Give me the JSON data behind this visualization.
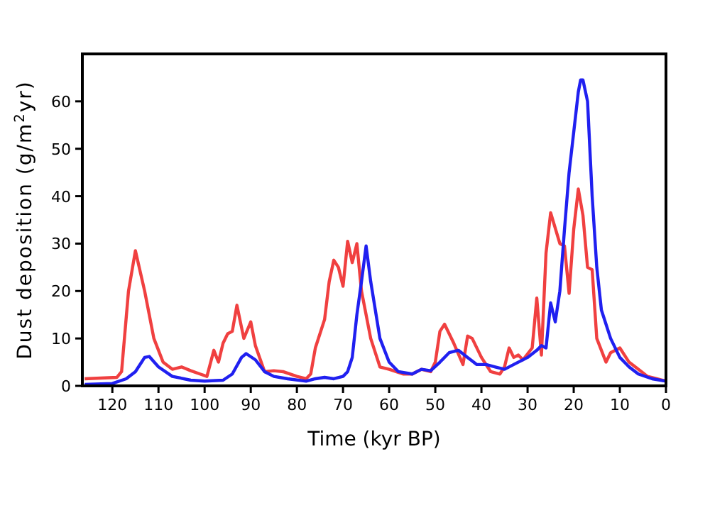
{
  "chart_data": {
    "type": "line",
    "xlabel": "Time (kyr BP)",
    "ylabel": "Dust deposition (g/m$^{2}$yr)",
    "xlim": [
      126.5,
      0
    ],
    "ylim": [
      0,
      70
    ],
    "xticks": [
      120,
      110,
      100,
      90,
      80,
      70,
      60,
      50,
      40,
      30,
      20,
      10,
      0
    ],
    "yticks": [
      0,
      10,
      20,
      30,
      40,
      50,
      60
    ],
    "grid": false,
    "line_style": "solid",
    "marker": "none",
    "series": [
      {
        "color": "#f04040",
        "x": [
          126,
          119,
          118,
          116.5,
          115,
          113,
          111,
          109,
          107,
          105,
          103,
          101,
          99.5,
          98,
          97,
          96,
          95,
          94,
          93,
          91.5,
          90,
          89,
          87,
          85,
          83,
          80,
          78,
          77,
          76,
          74,
          73,
          72,
          71,
          70,
          69,
          68,
          67,
          66,
          64,
          62,
          60,
          57,
          55,
          53,
          51,
          50,
          49,
          48,
          46,
          44,
          43,
          42,
          40,
          38,
          36,
          35,
          34,
          33,
          32,
          31,
          29,
          28,
          27,
          26,
          25,
          23,
          22,
          21,
          20,
          19,
          18,
          17,
          16,
          15,
          13,
          12,
          10,
          8,
          6,
          4,
          2,
          0
        ],
        "values": [
          1.5,
          1.8,
          3,
          20,
          28.5,
          20,
          10,
          5,
          3.5,
          4,
          3.2,
          2.5,
          2,
          7.5,
          5,
          9,
          11,
          11.5,
          17,
          10,
          13.5,
          8.5,
          3,
          3.2,
          3,
          2,
          1.5,
          2.5,
          8,
          14,
          22,
          26.5,
          25,
          21,
          30.5,
          26,
          30,
          20,
          10,
          4,
          3.5,
          2.5,
          2.5,
          3.5,
          3,
          5,
          11.5,
          13,
          9,
          4.5,
          10.5,
          10,
          6,
          3,
          2.5,
          4,
          8,
          6,
          6.5,
          5.5,
          8,
          18.5,
          6.5,
          28,
          36.5,
          30,
          29.5,
          19.5,
          33,
          41.5,
          36,
          25,
          24.5,
          10,
          5,
          7,
          8,
          5,
          3.5,
          2,
          1.5,
          1
        ]
      },
      {
        "color": "#2020f0",
        "x": [
          126,
          120,
          117,
          115,
          113,
          112,
          110,
          107,
          103,
          100,
          96,
          94,
          92,
          91,
          89,
          87,
          85,
          82,
          78,
          76,
          74,
          72,
          70,
          69,
          68,
          67,
          66,
          65,
          64,
          62,
          60,
          58,
          55,
          53,
          51,
          49,
          47,
          45,
          43,
          41,
          39,
          37,
          35,
          33,
          30,
          28,
          27,
          26,
          25,
          24,
          23,
          22,
          21,
          19,
          18.5,
          18,
          17,
          16,
          15,
          14,
          12,
          10,
          8,
          6,
          3,
          0
        ],
        "values": [
          0.3,
          0.5,
          1.5,
          3,
          6,
          6.2,
          4,
          2,
          1.2,
          1,
          1.2,
          2.5,
          6,
          6.8,
          5.5,
          3,
          2,
          1.5,
          1,
          1.5,
          1.8,
          1.5,
          2,
          3,
          6,
          15,
          22,
          29.5,
          22,
          10,
          5,
          3,
          2.5,
          3.5,
          3.2,
          5,
          7,
          7.5,
          6,
          4.5,
          4.5,
          4,
          3.5,
          4.5,
          6,
          7.5,
          8.5,
          8,
          17.5,
          13.5,
          20,
          33,
          45,
          62,
          64.5,
          64.5,
          60,
          40,
          25,
          16,
          10,
          6,
          4,
          2.5,
          1.5,
          1
        ]
      }
    ]
  }
}
